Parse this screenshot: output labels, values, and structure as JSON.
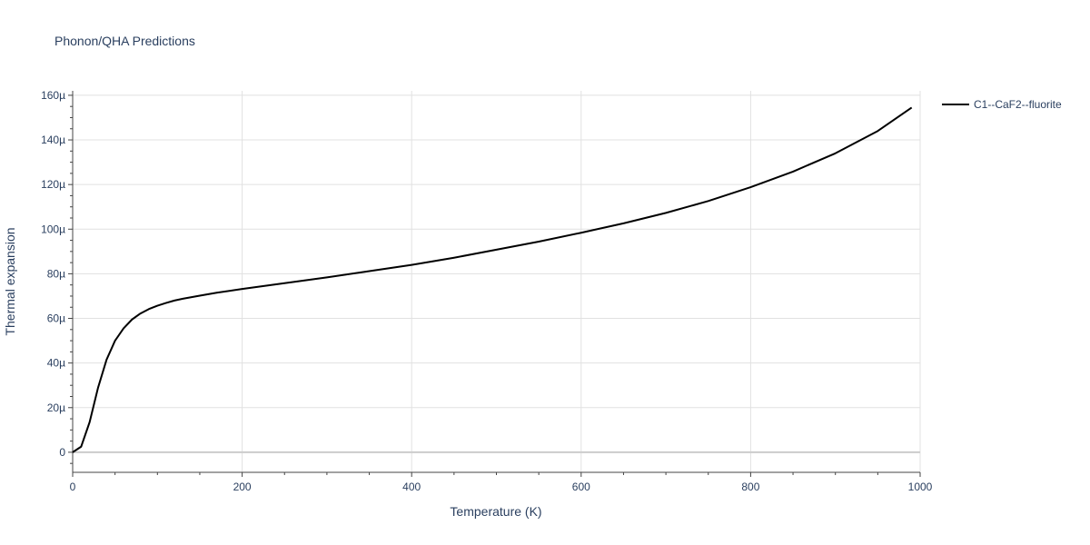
{
  "chart_data": {
    "type": "line",
    "title": "Phonon/QHA Predictions",
    "xlabel": "Temperature (K)",
    "ylabel": "Thermal expansion",
    "xlim": [
      0,
      1000
    ],
    "ylim": [
      -9,
      162
    ],
    "x_ticks": [
      0,
      200,
      400,
      600,
      800,
      1000
    ],
    "x_tick_labels": [
      "0",
      "200",
      "400",
      "600",
      "800",
      "1000"
    ],
    "y_ticks": [
      0,
      20,
      40,
      60,
      80,
      100,
      120,
      140,
      160
    ],
    "y_tick_labels": [
      "0",
      "20µ",
      "40µ",
      "60µ",
      "80µ",
      "100µ",
      "120µ",
      "140µ",
      "160µ"
    ],
    "grid": true,
    "legend_position": "top-right",
    "series": [
      {
        "name": "C1--CaF2--fluorite",
        "color": "#000000",
        "x": [
          0,
          10,
          20,
          30,
          40,
          50,
          60,
          70,
          80,
          90,
          100,
          110,
          120,
          130,
          150,
          170,
          200,
          250,
          300,
          350,
          400,
          450,
          500,
          550,
          600,
          650,
          700,
          750,
          800,
          850,
          900,
          950,
          990
        ],
        "y": [
          0,
          2.5,
          13.5,
          29,
          41.5,
          50,
          55.5,
          59.5,
          62.2,
          64.2,
          65.7,
          66.9,
          68,
          68.8,
          70.2,
          71.5,
          73.2,
          75.8,
          78.4,
          81.2,
          84,
          87.2,
          90.8,
          94.4,
          98.4,
          102.6,
          107.3,
          112.6,
          118.8,
          125.8,
          134,
          144,
          154.5
        ]
      }
    ]
  }
}
